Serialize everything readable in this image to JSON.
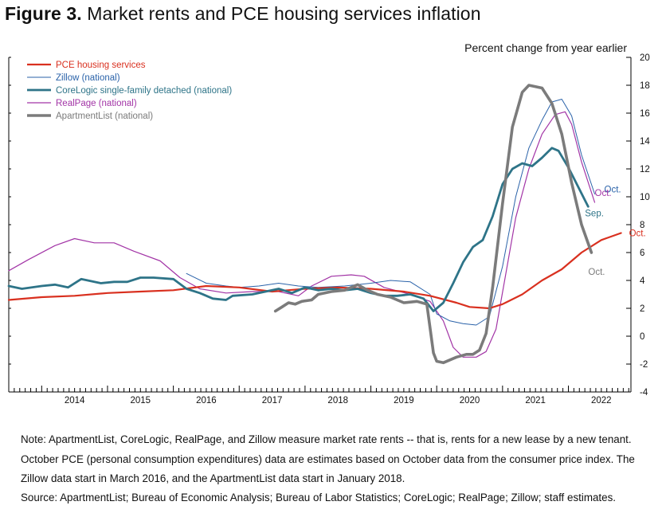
{
  "figure": {
    "title_prefix": "Figure 3",
    "title_rest": " Market rents and PCE housing services inflation"
  },
  "notes": {
    "note": "Note: ApartmentList, CoreLogic, RealPage, and Zillow measure market rate rents -- that is, rents for a new lease by a new tenant. October PCE (personal consumption expenditures) data are estimates based on October data from the consumer price index. The Zillow data start in March 2016, and the ApartmentList data start in January 2018.",
    "source": "Source: ApartmentList; Bureau of Economic Analysis; Bureau of Labor Statistics; CoreLogic; RealPage; Zillow; staff estimates."
  },
  "chart_data": {
    "type": "line",
    "ylabel": "Percent change from year earlier",
    "ylim": [
      -4,
      20
    ],
    "yticks": [
      -4,
      -2,
      0,
      2,
      4,
      6,
      8,
      10,
      12,
      14,
      16,
      18,
      20
    ],
    "xlim": [
      2013.5,
      2022.95
    ],
    "xtick_labels": [
      "2014",
      "2015",
      "2016",
      "2017",
      "2018",
      "2019",
      "2020",
      "2021",
      "2022"
    ],
    "legend_position": "top-left",
    "grid": false,
    "series": [
      {
        "name": "PCE housing services",
        "color": "#d9301f",
        "width": 2.2,
        "end_label": "Oct.",
        "points": [
          [
            2013.5,
            2.6
          ],
          [
            2014.0,
            2.8
          ],
          [
            2014.5,
            2.9
          ],
          [
            2015.0,
            3.1
          ],
          [
            2015.5,
            3.2
          ],
          [
            2016.0,
            3.3
          ],
          [
            2016.5,
            3.6
          ],
          [
            2017.0,
            3.5
          ],
          [
            2017.5,
            3.2
          ],
          [
            2018.0,
            3.4
          ],
          [
            2018.5,
            3.5
          ],
          [
            2019.0,
            3.4
          ],
          [
            2019.5,
            3.2
          ],
          [
            2019.9,
            2.9
          ],
          [
            2020.3,
            2.4
          ],
          [
            2020.5,
            2.1
          ],
          [
            2020.8,
            2.0
          ],
          [
            2021.0,
            2.3
          ],
          [
            2021.3,
            3.0
          ],
          [
            2021.6,
            4.0
          ],
          [
            2021.9,
            4.8
          ],
          [
            2022.2,
            6.0
          ],
          [
            2022.5,
            6.9
          ],
          [
            2022.8,
            7.4
          ]
        ]
      },
      {
        "name": "Zillow (national)",
        "color": "#2a62a9",
        "width": 1,
        "end_label": "Oct.",
        "points": [
          [
            2016.2,
            4.5
          ],
          [
            2016.5,
            3.8
          ],
          [
            2016.8,
            3.6
          ],
          [
            2017.0,
            3.5
          ],
          [
            2017.3,
            3.6
          ],
          [
            2017.6,
            3.8
          ],
          [
            2017.9,
            3.6
          ],
          [
            2018.2,
            3.5
          ],
          [
            2018.6,
            3.6
          ],
          [
            2019.0,
            3.8
          ],
          [
            2019.3,
            4.0
          ],
          [
            2019.6,
            3.9
          ],
          [
            2019.9,
            3.0
          ],
          [
            2020.0,
            1.6
          ],
          [
            2020.2,
            1.1
          ],
          [
            2020.4,
            0.9
          ],
          [
            2020.6,
            0.8
          ],
          [
            2020.8,
            1.4
          ],
          [
            2021.0,
            5.0
          ],
          [
            2021.2,
            10.0
          ],
          [
            2021.4,
            13.5
          ],
          [
            2021.6,
            15.5
          ],
          [
            2021.75,
            16.8
          ],
          [
            2021.9,
            17.0
          ],
          [
            2022.05,
            15.8
          ],
          [
            2022.2,
            13.0
          ],
          [
            2022.4,
            10.2
          ]
        ]
      },
      {
        "name": "CoreLogic single-family detached (national)",
        "color": "#2e7488",
        "width": 2.8,
        "end_label": "Sep.",
        "points": [
          [
            2013.5,
            3.6
          ],
          [
            2013.7,
            3.4
          ],
          [
            2014.0,
            3.6
          ],
          [
            2014.2,
            3.7
          ],
          [
            2014.4,
            3.5
          ],
          [
            2014.6,
            4.1
          ],
          [
            2014.9,
            3.8
          ],
          [
            2015.1,
            3.9
          ],
          [
            2015.3,
            3.9
          ],
          [
            2015.5,
            4.2
          ],
          [
            2015.7,
            4.2
          ],
          [
            2016.0,
            4.1
          ],
          [
            2016.2,
            3.4
          ],
          [
            2016.4,
            3.1
          ],
          [
            2016.6,
            2.7
          ],
          [
            2016.8,
            2.6
          ],
          [
            2016.9,
            2.9
          ],
          [
            2017.2,
            3.0
          ],
          [
            2017.4,
            3.2
          ],
          [
            2017.6,
            3.4
          ],
          [
            2017.8,
            3.1
          ],
          [
            2018.0,
            3.5
          ],
          [
            2018.2,
            3.3
          ],
          [
            2018.4,
            3.4
          ],
          [
            2018.6,
            3.3
          ],
          [
            2018.8,
            3.4
          ],
          [
            2019.0,
            3.1
          ],
          [
            2019.2,
            2.9
          ],
          [
            2019.4,
            2.9
          ],
          [
            2019.6,
            3.0
          ],
          [
            2019.8,
            2.7
          ],
          [
            2019.95,
            1.8
          ],
          [
            2020.1,
            2.4
          ],
          [
            2020.25,
            3.8
          ],
          [
            2020.4,
            5.3
          ],
          [
            2020.55,
            6.4
          ],
          [
            2020.7,
            6.9
          ],
          [
            2020.85,
            8.6
          ],
          [
            2021.0,
            10.9
          ],
          [
            2021.15,
            12.0
          ],
          [
            2021.3,
            12.4
          ],
          [
            2021.45,
            12.2
          ],
          [
            2021.6,
            12.8
          ],
          [
            2021.75,
            13.5
          ],
          [
            2021.85,
            13.3
          ],
          [
            2022.0,
            12.1
          ],
          [
            2022.15,
            10.7
          ],
          [
            2022.3,
            9.3
          ]
        ]
      },
      {
        "name": "RealPage (national)",
        "color": "#a234a6",
        "width": 1.2,
        "end_label": "Oct.",
        "points": [
          [
            2013.5,
            4.7
          ],
          [
            2013.8,
            5.5
          ],
          [
            2014.2,
            6.5
          ],
          [
            2014.5,
            7.0
          ],
          [
            2014.8,
            6.7
          ],
          [
            2015.1,
            6.7
          ],
          [
            2015.4,
            6.1
          ],
          [
            2015.8,
            5.4
          ],
          [
            2016.1,
            4.2
          ],
          [
            2016.4,
            3.4
          ],
          [
            2016.8,
            3.1
          ],
          [
            2017.2,
            3.2
          ],
          [
            2017.6,
            3.2
          ],
          [
            2017.9,
            2.9
          ],
          [
            2018.1,
            3.6
          ],
          [
            2018.4,
            4.3
          ],
          [
            2018.7,
            4.4
          ],
          [
            2018.9,
            4.3
          ],
          [
            2019.2,
            3.5
          ],
          [
            2019.6,
            3.0
          ],
          [
            2019.9,
            2.5
          ],
          [
            2020.1,
            1.1
          ],
          [
            2020.25,
            -0.8
          ],
          [
            2020.4,
            -1.5
          ],
          [
            2020.6,
            -1.5
          ],
          [
            2020.75,
            -1.1
          ],
          [
            2020.9,
            0.5
          ],
          [
            2021.05,
            4.5
          ],
          [
            2021.2,
            8.5
          ],
          [
            2021.4,
            12.0
          ],
          [
            2021.6,
            14.5
          ],
          [
            2021.8,
            15.9
          ],
          [
            2021.95,
            16.1
          ],
          [
            2022.05,
            15.2
          ],
          [
            2022.2,
            12.5
          ],
          [
            2022.4,
            9.6
          ]
        ]
      },
      {
        "name": "ApartmentList (national)",
        "color": "#7b7b7b",
        "width": 3.6,
        "end_label": "Oct.",
        "points": [
          [
            2017.55,
            1.8
          ],
          [
            2017.65,
            2.1
          ],
          [
            2017.75,
            2.4
          ],
          [
            2017.85,
            2.3
          ],
          [
            2017.95,
            2.5
          ],
          [
            2018.1,
            2.6
          ],
          [
            2018.2,
            3.0
          ],
          [
            2018.4,
            3.2
          ],
          [
            2018.6,
            3.3
          ],
          [
            2018.8,
            3.7
          ],
          [
            2018.95,
            3.3
          ],
          [
            2019.1,
            3.0
          ],
          [
            2019.3,
            2.8
          ],
          [
            2019.5,
            2.4
          ],
          [
            2019.7,
            2.5
          ],
          [
            2019.85,
            2.3
          ],
          [
            2019.95,
            -1.2
          ],
          [
            2020.0,
            -1.8
          ],
          [
            2020.1,
            -1.9
          ],
          [
            2020.3,
            -1.5
          ],
          [
            2020.45,
            -1.3
          ],
          [
            2020.55,
            -1.3
          ],
          [
            2020.65,
            -1.0
          ],
          [
            2020.75,
            0.2
          ],
          [
            2020.85,
            3.5
          ],
          [
            2021.0,
            9.5
          ],
          [
            2021.15,
            15.0
          ],
          [
            2021.3,
            17.5
          ],
          [
            2021.4,
            18.0
          ],
          [
            2021.6,
            17.8
          ],
          [
            2021.75,
            16.7
          ],
          [
            2021.9,
            14.5
          ],
          [
            2022.05,
            11.0
          ],
          [
            2022.2,
            8.0
          ],
          [
            2022.35,
            6.0
          ]
        ]
      }
    ]
  }
}
